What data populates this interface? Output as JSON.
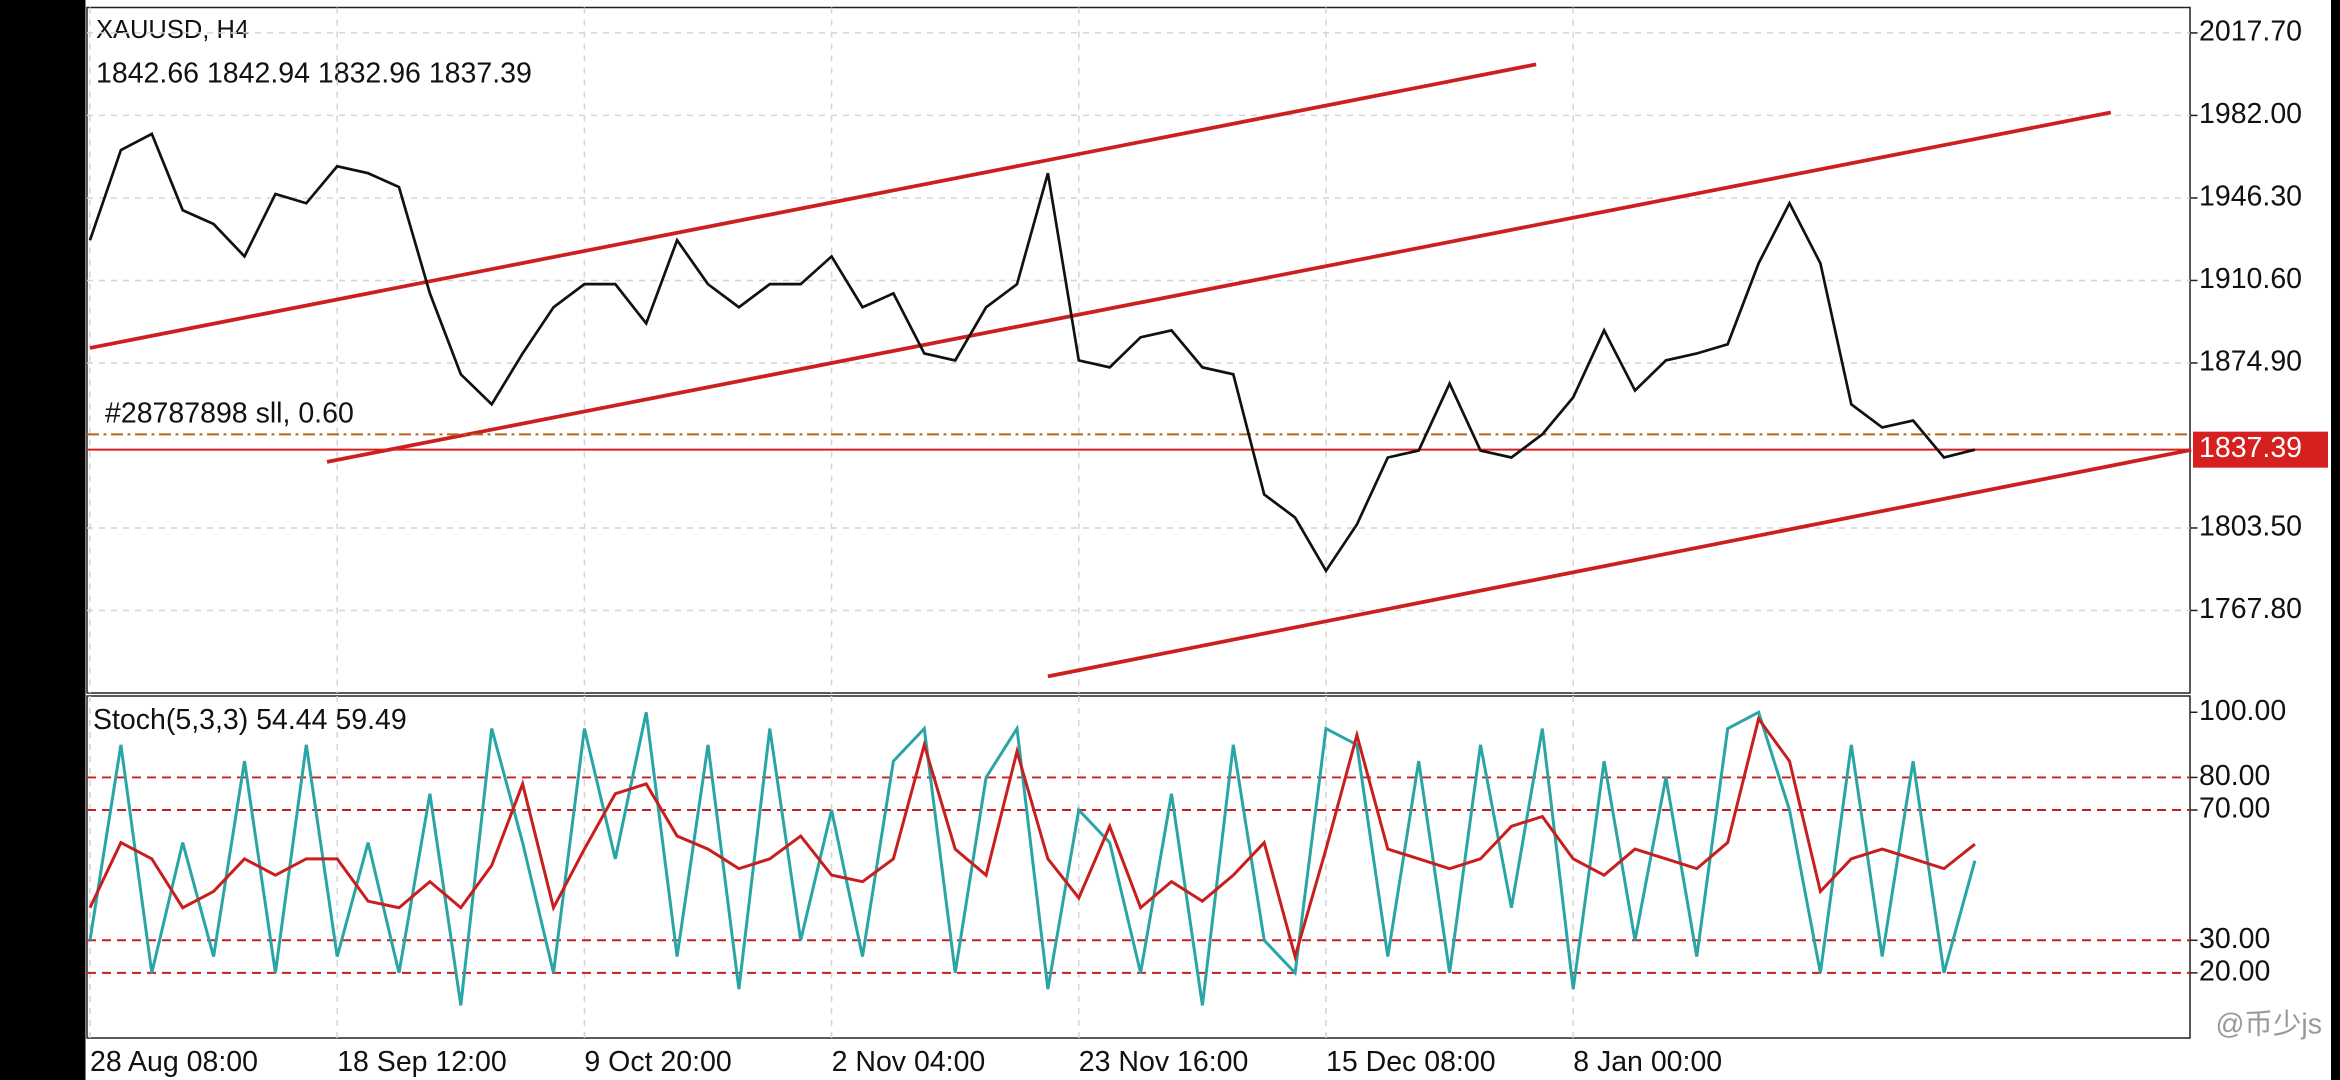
{
  "chart_data": [
    {
      "type": "line",
      "title": "XAUUSD, H4",
      "subtitle": "1842.66 1842.94 1832.96 1837.39",
      "categories": [
        "28 Aug 08:00",
        null,
        null,
        null,
        null,
        null,
        null,
        null,
        "18 Sep 12:00",
        null,
        null,
        null,
        null,
        null,
        null,
        null,
        "9 Oct 20:00",
        null,
        null,
        null,
        null,
        null,
        null,
        null,
        "2 Nov 04:00",
        null,
        null,
        null,
        null,
        null,
        null,
        null,
        "23 Nov 16:00",
        null,
        null,
        null,
        null,
        null,
        null,
        null,
        "15 Dec 08:00",
        null,
        null,
        null,
        null,
        null,
        null,
        null,
        "8 Jan 00:00",
        null,
        null,
        null,
        null,
        null,
        null,
        null,
        null,
        null,
        null,
        null,
        null,
        null
      ],
      "values": [
        1928,
        1967,
        1974,
        1941,
        1935,
        1921,
        1948,
        1944,
        1960,
        1957,
        1951,
        1905,
        1870,
        1857,
        1879,
        1899,
        1909,
        1909,
        1892,
        1928,
        1909,
        1899,
        1909,
        1909,
        1921,
        1899,
        1905,
        1879,
        1876,
        1899,
        1909,
        1957,
        1876,
        1873,
        1886,
        1889,
        1873,
        1870,
        1818,
        1808,
        1785,
        1805,
        1834,
        1837,
        1866,
        1837,
        1834,
        1844,
        1860,
        1889,
        1863,
        1876,
        1879,
        1883,
        1918,
        1944,
        1918,
        1857,
        1847,
        1850,
        1834,
        1837.39
      ],
      "color": "#111111",
      "ylim": [
        1732.1,
        2028.7
      ],
      "yticks": [
        {
          "value": 2017.7,
          "label": "2017.70"
        },
        {
          "value": 1982,
          "label": "1982.00"
        },
        {
          "value": 1946.3,
          "label": "1946.30"
        },
        {
          "value": 1910.6,
          "label": "1910.60"
        },
        {
          "value": 1874.9,
          "label": "1874.90"
        },
        {
          "value": 1803.5,
          "label": "1803.50"
        },
        {
          "value": 1767.8,
          "label": "1767.80"
        }
      ],
      "grid": true,
      "order": {
        "label": "#28787898 sll, 0.60",
        "value": 1844,
        "color": "#b8651a"
      },
      "price": {
        "value": 1837.39,
        "color": "#d61f1f"
      },
      "trendlines": [
        {
          "x": [
            0,
            46.8
          ],
          "y": [
            1881.4,
            2004.1
          ]
        },
        {
          "x": [
            7.67,
            65.4
          ],
          "y": [
            1832.1,
            1983.3
          ]
        },
        {
          "x": [
            31,
            68
          ],
          "y": [
            1739.3,
            1837.3
          ]
        }
      ],
      "trendline_color": "#cc1f1f",
      "watermark": "@币少js"
    },
    {
      "type": "line",
      "title": "Stoch(5,3,3) 54.44 59.49",
      "series": [
        {
          "color": "#2aa5a5",
          "values": [
            30,
            90,
            20,
            60,
            25,
            85,
            20,
            90,
            25,
            60,
            20,
            75,
            10,
            95,
            60,
            20,
            95,
            55,
            100,
            25,
            90,
            15,
            95,
            30,
            70,
            25,
            85,
            95,
            20,
            80,
            95,
            15,
            70,
            60,
            20,
            75,
            10,
            90,
            30,
            20,
            95,
            90,
            25,
            85,
            20,
            90,
            40,
            95,
            15,
            85,
            30,
            80,
            25,
            95,
            100,
            70,
            20,
            90,
            25,
            85,
            20,
            54.44
          ]
        },
        {
          "color": "#c81e1e",
          "values": [
            40,
            60,
            55,
            40,
            45,
            55,
            50,
            55,
            55,
            42,
            40,
            48,
            40,
            53,
            78,
            40,
            58,
            75,
            78,
            62,
            58,
            52,
            55,
            62,
            50,
            48,
            55,
            90,
            58,
            50,
            88,
            55,
            43,
            65,
            40,
            48,
            42,
            50,
            60,
            25,
            58,
            93,
            58,
            55,
            52,
            55,
            65,
            68,
            55,
            50,
            58,
            55,
            52,
            60,
            98,
            85,
            45,
            55,
            58,
            55,
            52,
            59.49
          ]
        }
      ],
      "ylim": [
        0,
        105
      ],
      "yticks": [
        {
          "value": 100,
          "label": "100.00"
        },
        {
          "value": 80,
          "label": "80.00"
        },
        {
          "value": 70,
          "label": "70.00"
        },
        {
          "value": 30,
          "label": "30.00"
        },
        {
          "value": 20,
          "label": "20.00"
        }
      ],
      "levels": [
        80,
        70,
        30,
        20
      ],
      "level_color": "#c81e1e"
    }
  ]
}
